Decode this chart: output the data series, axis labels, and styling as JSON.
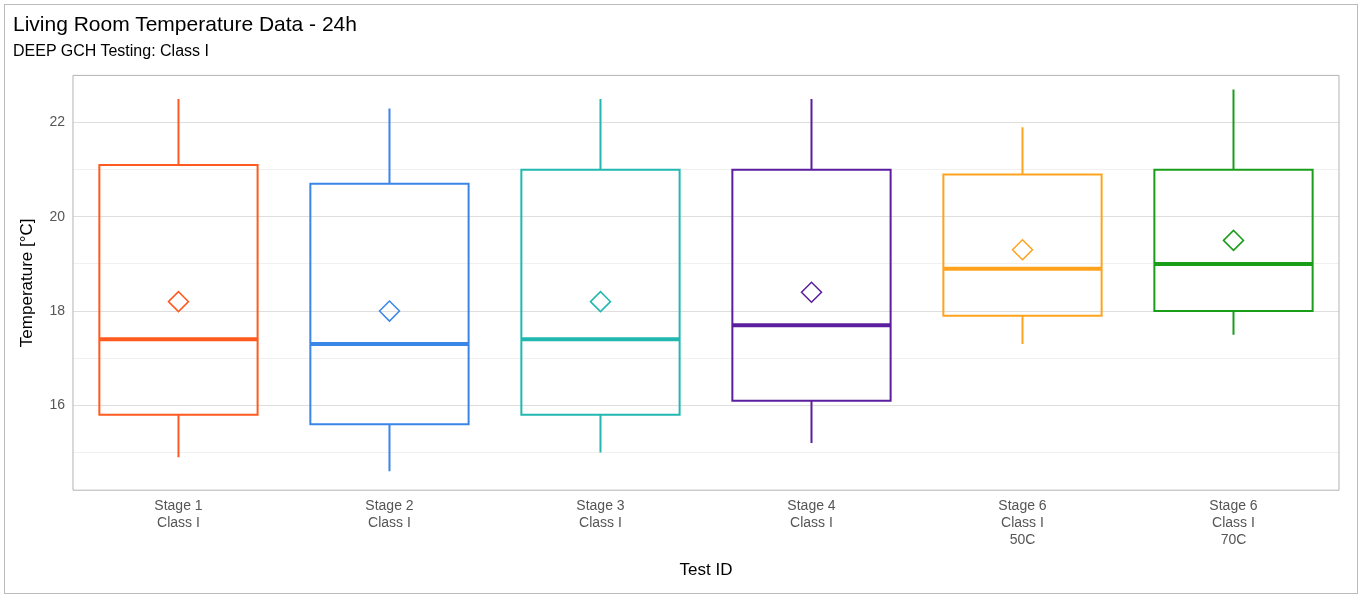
{
  "chart_data": {
    "type": "box",
    "title": "Living Room Temperature Data - 24h",
    "subtitle": "DEEP GCH Testing: Class I",
    "xlabel": "Test ID",
    "ylabel": "Temperature [°C]",
    "categories": [
      "Stage 1\nClass I",
      "Stage 2\nClass I",
      "Stage 3\nClass I",
      "Stage 4\nClass I",
      "Stage 6\nClass I\n50C",
      "Stage 6\nClass I\n70C"
    ],
    "colors": [
      "#ff5a1f",
      "#3a86e8",
      "#20b8b0",
      "#5b1e9e",
      "#ffa31f",
      "#1a9e1a"
    ],
    "boxes": [
      {
        "low": 14.9,
        "q1": 15.8,
        "median": 17.4,
        "q3": 21.1,
        "high": 22.5,
        "mean": 18.2
      },
      {
        "low": 14.6,
        "q1": 15.6,
        "median": 17.3,
        "q3": 20.7,
        "high": 22.3,
        "mean": 18.0
      },
      {
        "low": 15.0,
        "q1": 15.8,
        "median": 17.4,
        "q3": 21.0,
        "high": 22.5,
        "mean": 18.2
      },
      {
        "low": 15.2,
        "q1": 16.1,
        "median": 17.7,
        "q3": 21.0,
        "high": 22.5,
        "mean": 18.4
      },
      {
        "low": 17.3,
        "q1": 17.9,
        "median": 18.9,
        "q3": 20.9,
        "high": 21.9,
        "mean": 19.3
      },
      {
        "low": 17.5,
        "q1": 18.0,
        "median": 19.0,
        "q3": 21.0,
        "high": 22.7,
        "mean": 19.5
      }
    ],
    "ylim": [
      14.2,
      23
    ],
    "yticks": [
      {
        "value": 15,
        "label": null
      },
      16,
      {
        "value": 17,
        "label": null
      },
      18,
      {
        "value": 19,
        "label": null
      },
      20,
      {
        "value": 21,
        "label": null
      },
      22
    ],
    "grid": "y",
    "marker": "diamond",
    "legend": false
  }
}
